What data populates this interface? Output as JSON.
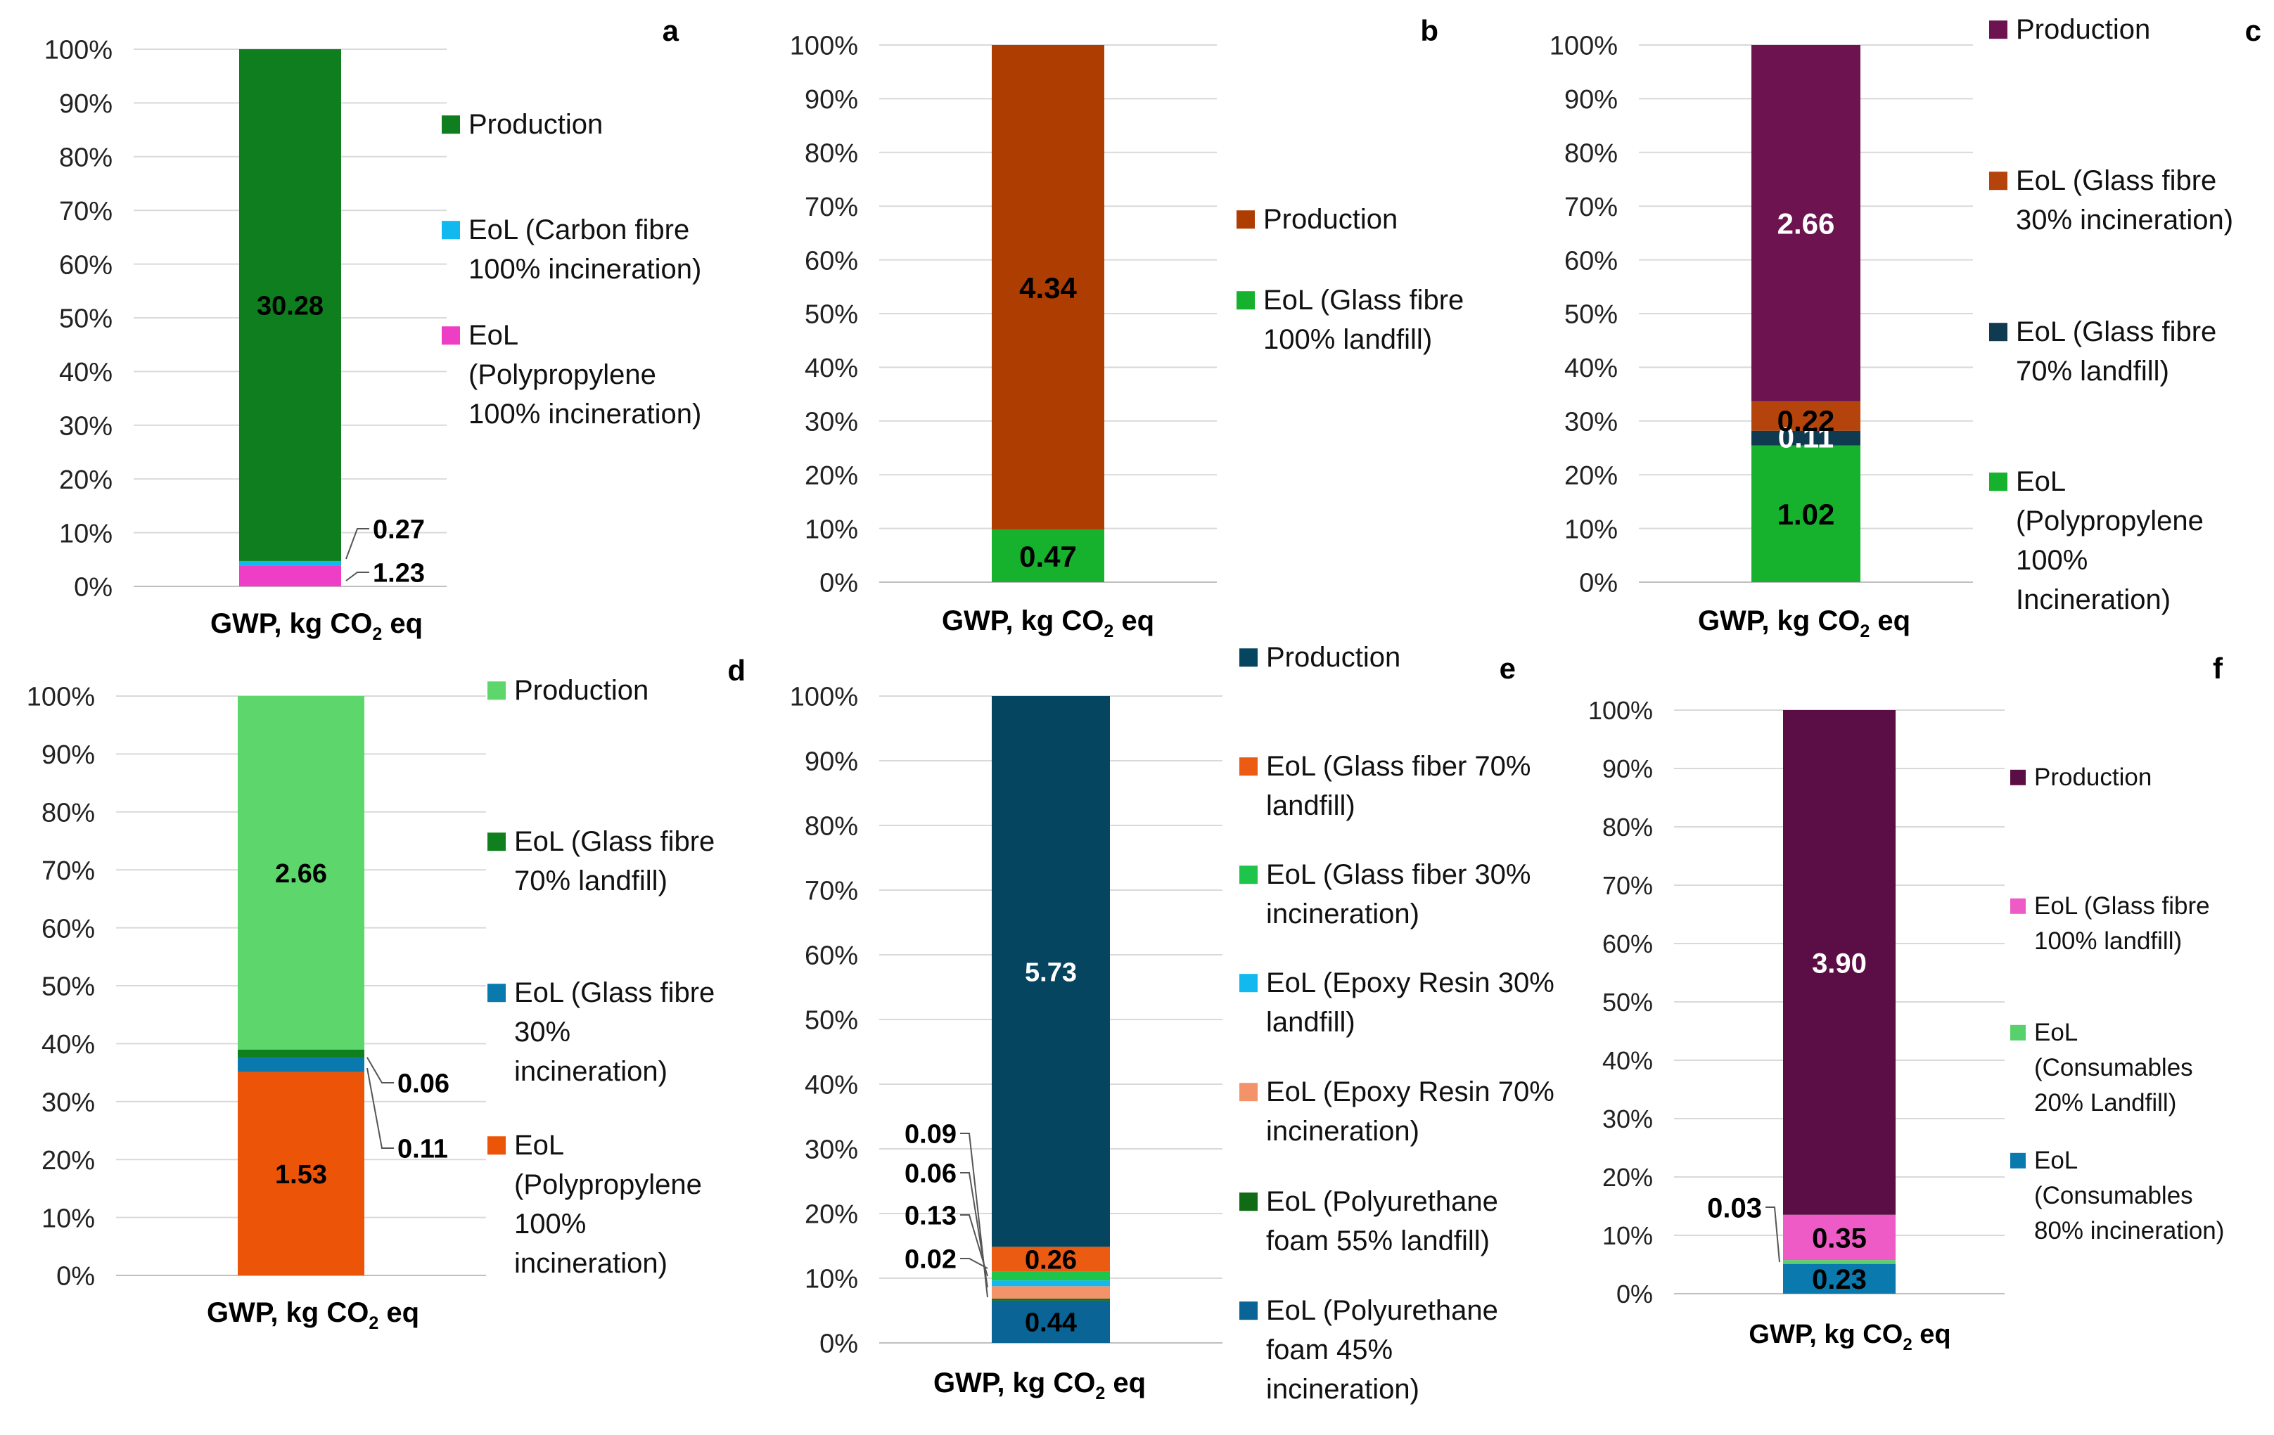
{
  "figure": {
    "type": "stacked-bar-panels",
    "panel_count": 6
  },
  "chart_data": [
    {
      "id": "a",
      "type": "bar",
      "stacked": "percent",
      "panel_label": "a",
      "categories": [
        "GWP, kg CO2 eq"
      ],
      "xlabel": {
        "main": "GWP, kg CO",
        "sub": "2",
        "tail": " eq"
      },
      "ylim": [
        0,
        100
      ],
      "yticks": [
        "0%",
        "10%",
        "20%",
        "30%",
        "40%",
        "50%",
        "60%",
        "70%",
        "80%",
        "90%",
        "100%"
      ],
      "series": [
        {
          "name": "EoL (Polypropylene 100% incineration)",
          "legend_lines": [
            "EoL",
            "(Polypropylene",
            "100% incineration)"
          ],
          "value": 1.23,
          "label": "1.23",
          "color": "#EE3EC6"
        },
        {
          "name": "EoL (Carbon fibre 100% incineration)",
          "legend_lines": [
            "EoL (Carbon fibre",
            "100% incineration)"
          ],
          "value": 0.27,
          "label": "0.27",
          "color": "#12B9EE"
        },
        {
          "name": "Production",
          "legend_lines": [
            "Production"
          ],
          "value": 30.28,
          "label": "30.28",
          "color": "#0E7E1E"
        }
      ]
    },
    {
      "id": "b",
      "type": "bar",
      "stacked": "percent",
      "panel_label": "b",
      "categories": [
        "GWP, kg CO2 eq"
      ],
      "xlabel": {
        "main": "GWP, kg CO",
        "sub": "2",
        "tail": " eq"
      },
      "ylim": [
        0,
        100
      ],
      "yticks": [
        "0%",
        "10%",
        "20%",
        "30%",
        "40%",
        "50%",
        "60%",
        "70%",
        "80%",
        "90%",
        "100%"
      ],
      "series": [
        {
          "name": "EoL (Glass fibre 100% landfill)",
          "legend_lines": [
            "EoL (Glass fibre",
            "100% landfill)"
          ],
          "value": 0.47,
          "label": "0.47",
          "color": "#16B22E"
        },
        {
          "name": "Production",
          "legend_lines": [
            "Production"
          ],
          "value": 4.34,
          "label": "4.34",
          "color": "#AE3D02"
        }
      ]
    },
    {
      "id": "c",
      "type": "bar",
      "stacked": "percent",
      "panel_label": "c",
      "categories": [
        "GWP, kg CO2 eq"
      ],
      "xlabel": {
        "main": "GWP, kg CO",
        "sub": "2",
        "tail": " eq"
      },
      "ylim": [
        0,
        100
      ],
      "yticks": [
        "0%",
        "10%",
        "20%",
        "30%",
        "40%",
        "50%",
        "60%",
        "70%",
        "80%",
        "90%",
        "100%"
      ],
      "series": [
        {
          "name": "EoL (Polypropylene 100% Incineration)",
          "legend_lines": [
            "EoL",
            "(Polypropylene",
            "100%",
            "Incineration)"
          ],
          "value": 1.02,
          "label": "1.02",
          "color": "#16B22E"
        },
        {
          "name": "EoL (Glass fibre 70% landfill)",
          "legend_lines": [
            "EoL (Glass fibre",
            "70% landfill)"
          ],
          "value": 0.11,
          "label": "0.11",
          "color": "#103A50"
        },
        {
          "name": "EoL (Glass fibre 30% incineration)",
          "legend_lines": [
            "EoL (Glass fibre",
            "30% incineration)"
          ],
          "value": 0.22,
          "label": "0.22",
          "color": "#B4440B"
        },
        {
          "name": "Production",
          "legend_lines": [
            "Production"
          ],
          "value": 2.66,
          "label": "2.66",
          "color": "#6C1350"
        }
      ]
    },
    {
      "id": "d",
      "type": "bar",
      "stacked": "percent",
      "panel_label": "d",
      "categories": [
        "GWP, kg CO2 eq"
      ],
      "xlabel": {
        "main": "GWP, kg CO",
        "sub": "2",
        "tail": " eq"
      },
      "ylim": [
        0,
        100
      ],
      "yticks": [
        "0%",
        "10%",
        "20%",
        "30%",
        "40%",
        "50%",
        "60%",
        "70%",
        "80%",
        "90%",
        "100%"
      ],
      "series": [
        {
          "name": "EoL (Polypropylene 100% incineration)",
          "legend_lines": [
            "EoL",
            "(Polypropylene",
            "100%",
            "incineration)"
          ],
          "value": 1.53,
          "label": "1.53",
          "color": "#EC5408"
        },
        {
          "name": "EoL (Glass fibre 30% incineration)",
          "legend_lines": [
            "EoL (Glass fibre",
            "30%",
            "incineration)"
          ],
          "value": 0.11,
          "label": "0.11",
          "color": "#0A7AAE"
        },
        {
          "name": "EoL (Glass fibre 70% landfill)",
          "legend_lines": [
            "EoL (Glass fibre",
            "70% landfill)"
          ],
          "value": 0.06,
          "label": "0.06",
          "color": "#10801E"
        },
        {
          "name": "Production",
          "legend_lines": [
            "Production"
          ],
          "value": 2.66,
          "label": "2.66",
          "color": "#5DD76B"
        }
      ]
    },
    {
      "id": "e",
      "type": "bar",
      "stacked": "percent",
      "panel_label": "e",
      "categories": [
        "GWP, kg CO2 eq"
      ],
      "xlabel": {
        "main": "GWP, kg CO",
        "sub": "2",
        "tail": " eq"
      },
      "ylim": [
        0,
        100
      ],
      "yticks": [
        "0%",
        "10%",
        "20%",
        "30%",
        "40%",
        "50%",
        "60%",
        "70%",
        "80%",
        "90%",
        "100%"
      ],
      "series": [
        {
          "name": "EoL (Polyurethane foam 45% incineration)",
          "legend_lines": [
            "EoL (Polyurethane",
            "foam 45%",
            "incineration)"
          ],
          "value": 0.44,
          "label": "0.44",
          "color": "#0A6496"
        },
        {
          "name": "EoL (Polyurethane foam 55% landfill)",
          "legend_lines": [
            "EoL (Polyurethane",
            "foam 55% landfill)"
          ],
          "value": 0.02,
          "label": "0.02",
          "color": "#0F6B14"
        },
        {
          "name": "EoL (Epoxy Resin 70% incineration)",
          "legend_lines": [
            "EoL (Epoxy Resin 70%",
            "incineration)"
          ],
          "value": 0.13,
          "label": "0.13",
          "color": "#F4926A"
        },
        {
          "name": "EoL (Epoxy Resin 30% landfill)",
          "legend_lines": [
            "EoL (Epoxy Resin 30%",
            "landfill)"
          ],
          "value": 0.06,
          "label": "0.06",
          "color": "#12B9EE"
        },
        {
          "name": "EoL (Glass fiber 30% incineration)",
          "legend_lines": [
            "EoL (Glass fiber 30%",
            "incineration)"
          ],
          "value": 0.09,
          "label": "0.09",
          "color": "#1FC54B"
        },
        {
          "name": "EoL (Glass fiber 70% landfill)",
          "legend_lines": [
            "EoL (Glass fiber 70%",
            "landfill)"
          ],
          "value": 0.26,
          "label": "0.26",
          "color": "#EB5B12"
        },
        {
          "name": "Production",
          "legend_lines": [
            "Production"
          ],
          "value": 5.73,
          "label": "5.73",
          "color": "#064560"
        }
      ]
    },
    {
      "id": "f",
      "type": "bar",
      "stacked": "percent",
      "panel_label": "f",
      "categories": [
        "GWP, kg CO2 eq"
      ],
      "xlabel": {
        "main": "GWP, kg CO",
        "sub": "2",
        "tail": " eq"
      },
      "ylim": [
        0,
        100
      ],
      "yticks": [
        "0%",
        "10%",
        "20%",
        "30%",
        "40%",
        "50%",
        "60%",
        "70%",
        "80%",
        "90%",
        "100%"
      ],
      "series": [
        {
          "name": "EoL (Consumables 80% incineration)",
          "legend_lines": [
            "EoL",
            "(Consumables",
            "80% incineration)"
          ],
          "value": 0.23,
          "label": "0.23",
          "color": "#0A7AAE"
        },
        {
          "name": "EoL (Consumables 20% Landfill)",
          "legend_lines": [
            "EoL",
            "(Consumables",
            "20% Landfill)"
          ],
          "value": 0.03,
          "label": "0.03",
          "color": "#58D06C"
        },
        {
          "name": "EoL (Glass fibre 100% landfill)",
          "legend_lines": [
            "EoL (Glass fibre",
            "100% landfill)"
          ],
          "value": 0.35,
          "label": "0.35",
          "color": "#EE5BC6"
        },
        {
          "name": "Production",
          "legend_lines": [
            "Production"
          ],
          "value": 3.9,
          "label": "3.90",
          "color": "#5B0E46"
        }
      ]
    }
  ]
}
